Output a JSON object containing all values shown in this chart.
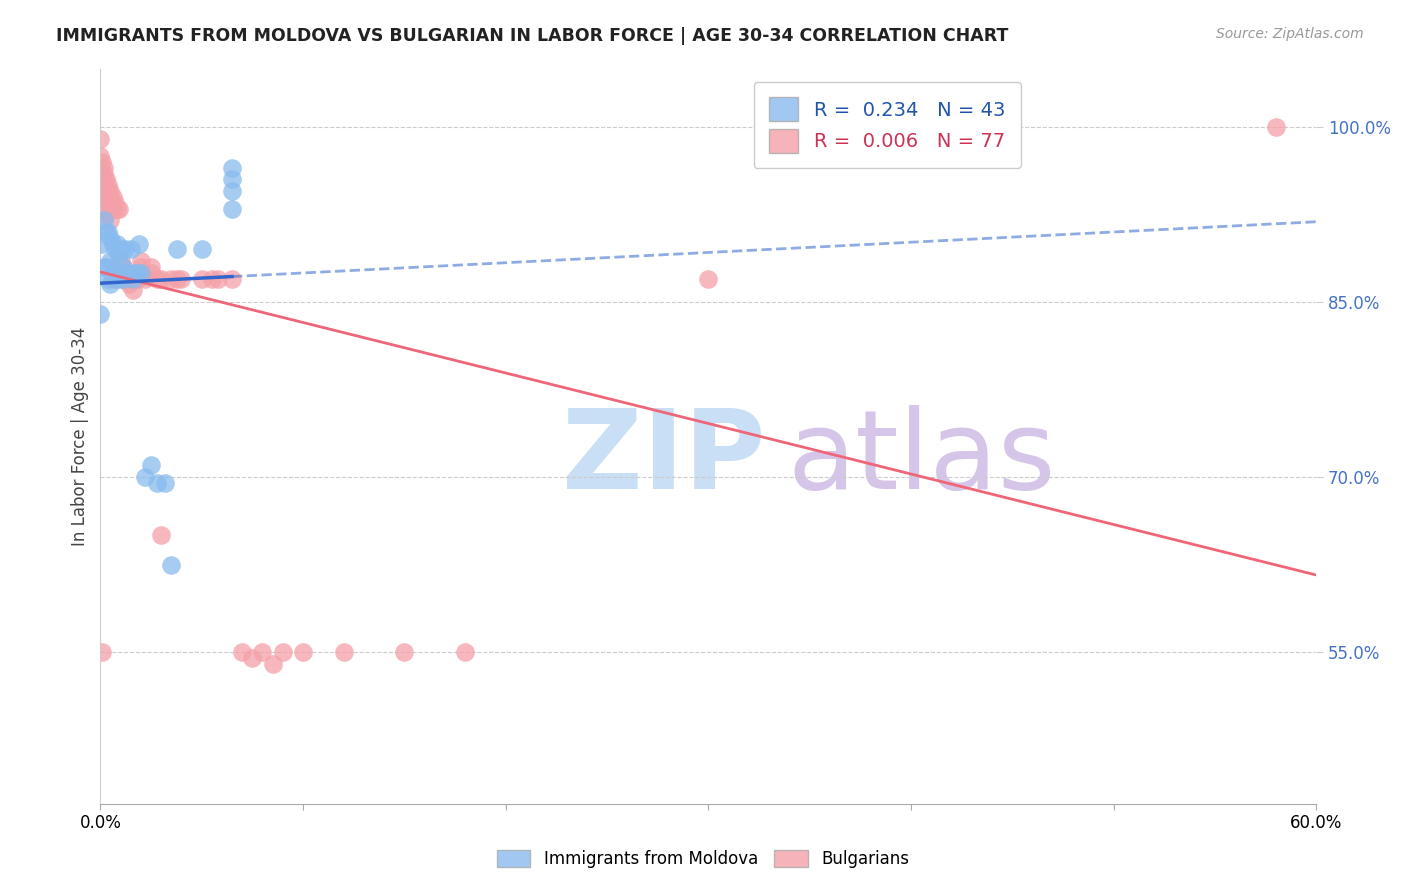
{
  "title": "IMMIGRANTS FROM MOLDOVA VS BULGARIAN IN LABOR FORCE | AGE 30-34 CORRELATION CHART",
  "source_text": "Source: ZipAtlas.com",
  "ylabel": "In Labor Force | Age 30-34",
  "xlim": [
    0.0,
    0.6
  ],
  "ylim": [
    0.42,
    1.05
  ],
  "yticks": [
    0.55,
    0.7,
    0.85,
    1.0
  ],
  "ytick_labels": [
    "55.0%",
    "70.0%",
    "85.0%",
    "100.0%"
  ],
  "moldova_color": "#88bbee",
  "bulgarian_color": "#f4a0a8",
  "moldova_line_color": "#3366cc",
  "bulgarian_line_color": "#ee6677",
  "moldova_x": [
    0.0,
    0.001,
    0.002,
    0.002,
    0.003,
    0.003,
    0.004,
    0.004,
    0.005,
    0.005,
    0.005,
    0.006,
    0.006,
    0.007,
    0.007,
    0.008,
    0.008,
    0.009,
    0.009,
    0.01,
    0.01,
    0.011,
    0.011,
    0.012,
    0.013,
    0.014,
    0.015,
    0.016,
    0.017,
    0.018,
    0.019,
    0.02,
    0.022,
    0.025,
    0.028,
    0.032,
    0.035,
    0.038,
    0.05,
    0.065,
    0.065,
    0.065,
    0.065
  ],
  "moldova_y": [
    0.84,
    0.9,
    0.88,
    0.92,
    0.91,
    0.88,
    0.91,
    0.87,
    0.905,
    0.885,
    0.865,
    0.9,
    0.875,
    0.895,
    0.875,
    0.9,
    0.875,
    0.89,
    0.87,
    0.895,
    0.875,
    0.88,
    0.87,
    0.895,
    0.875,
    0.875,
    0.895,
    0.87,
    0.875,
    0.875,
    0.9,
    0.875,
    0.7,
    0.71,
    0.695,
    0.695,
    0.625,
    0.895,
    0.895,
    0.965,
    0.955,
    0.945,
    0.93
  ],
  "bulgarian_x": [
    0.0,
    0.0,
    0.0,
    0.0,
    0.0,
    0.001,
    0.001,
    0.001,
    0.001,
    0.001,
    0.002,
    0.002,
    0.002,
    0.002,
    0.002,
    0.003,
    0.003,
    0.003,
    0.003,
    0.003,
    0.003,
    0.004,
    0.004,
    0.004,
    0.005,
    0.005,
    0.005,
    0.005,
    0.006,
    0.006,
    0.006,
    0.007,
    0.007,
    0.007,
    0.008,
    0.008,
    0.009,
    0.009,
    0.01,
    0.01,
    0.011,
    0.012,
    0.013,
    0.014,
    0.015,
    0.016,
    0.017,
    0.018,
    0.018,
    0.019,
    0.02,
    0.022,
    0.025,
    0.028,
    0.03,
    0.035,
    0.038,
    0.04,
    0.05,
    0.055,
    0.058,
    0.065,
    0.07,
    0.075,
    0.08,
    0.085,
    0.09,
    0.1,
    0.12,
    0.15,
    0.18,
    0.02,
    0.025,
    0.03,
    0.3,
    0.58,
    0.001
  ],
  "bulgarian_y": [
    0.99,
    0.975,
    0.965,
    0.955,
    0.945,
    0.97,
    0.96,
    0.95,
    0.94,
    0.93,
    0.965,
    0.96,
    0.95,
    0.94,
    0.93,
    0.955,
    0.95,
    0.945,
    0.94,
    0.935,
    0.925,
    0.95,
    0.945,
    0.935,
    0.945,
    0.94,
    0.93,
    0.92,
    0.94,
    0.93,
    0.87,
    0.935,
    0.87,
    0.88,
    0.93,
    0.88,
    0.93,
    0.88,
    0.875,
    0.885,
    0.88,
    0.87,
    0.87,
    0.865,
    0.87,
    0.86,
    0.87,
    0.87,
    0.87,
    0.875,
    0.885,
    0.87,
    0.875,
    0.87,
    0.87,
    0.87,
    0.87,
    0.87,
    0.87,
    0.87,
    0.87,
    0.87,
    0.55,
    0.545,
    0.55,
    0.54,
    0.55,
    0.55,
    0.55,
    0.55,
    0.55,
    0.88,
    0.88,
    0.65,
    0.87,
    1.0,
    0.55
  ]
}
